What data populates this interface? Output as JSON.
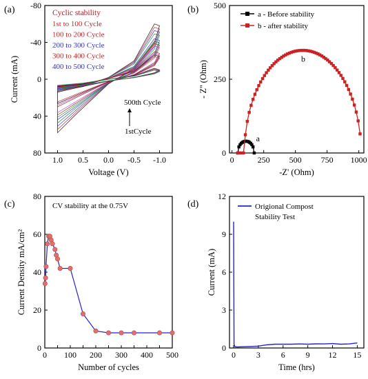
{
  "chart_data": [
    {
      "panel": "(a)",
      "type": "line",
      "xlabel": "Voltage (V)",
      "ylabel": "Current (mA)",
      "xlim": [
        1.25,
        -1.25
      ],
      "ylim": [
        80,
        -80
      ],
      "x_ticks": [
        1.0,
        0.5,
        0.0,
        -0.5,
        -1.0
      ],
      "x_tick_labels": [
        "1.0",
        "0.5",
        "0.0",
        "-0.5",
        "-1.0"
      ],
      "y_ticks": [
        -80,
        -40,
        0,
        40,
        80
      ],
      "y_tick_labels": [
        "-80",
        "-40",
        "0",
        "40",
        "80"
      ],
      "legend_title": "Cyclic stability",
      "legend": [
        {
          "text": "1st  to  100 Cycle",
          "color": "#cc2222"
        },
        {
          "text": "100 to 200 Cycle",
          "color": "#cc2222"
        },
        {
          "text": "200 to 300 Cycle",
          "color": "#3333cc"
        },
        {
          "text": "300 to 400 Cycle",
          "color": "#cc2222"
        },
        {
          "text": "400 to 500 Cycle",
          "color": "#3333cc"
        }
      ],
      "legend_position": "top-left",
      "annotations": [
        "500th Cycle",
        "1stCycle"
      ],
      "series": [
        {
          "upper": [
            [
              1.0,
              12
            ],
            [
              0.5,
              8
            ],
            [
              0.0,
              -2
            ],
            [
              -0.5,
              -20
            ],
            [
              -0.9,
              -60
            ],
            [
              -1.0,
              -58
            ]
          ],
          "lower": [
            [
              1.0,
              58
            ],
            [
              0.6,
              36
            ],
            [
              0.0,
              5
            ],
            [
              -0.5,
              -12
            ],
            [
              -0.9,
              -40
            ],
            [
              -1.0,
              -58
            ]
          ]
        },
        {
          "upper": [
            [
              1.0,
              10
            ],
            [
              0.5,
              7
            ],
            [
              0.0,
              -1
            ],
            [
              -0.5,
              -14
            ],
            [
              -0.9,
              -44
            ],
            [
              -1.0,
              -42
            ]
          ],
          "lower": [
            [
              1.0,
              44
            ],
            [
              0.6,
              28
            ],
            [
              0.0,
              4
            ],
            [
              -0.5,
              -8
            ],
            [
              -0.9,
              -28
            ],
            [
              -1.0,
              -42
            ]
          ]
        },
        {
          "upper": [
            [
              1.0,
              9
            ],
            [
              0.5,
              6
            ],
            [
              0.0,
              -1
            ],
            [
              -0.5,
              -10
            ],
            [
              -0.9,
              -30
            ],
            [
              -1.0,
              -28
            ]
          ],
          "lower": [
            [
              1.0,
              30
            ],
            [
              0.6,
              19
            ],
            [
              0.0,
              3
            ],
            [
              -0.5,
              -5
            ],
            [
              -0.9,
              -18
            ],
            [
              -1.0,
              -28
            ]
          ]
        },
        {
          "upper": [
            [
              1.0,
              8
            ],
            [
              0.5,
              5
            ],
            [
              0.0,
              0
            ],
            [
              -0.5,
              -4
            ],
            [
              -0.9,
              -12
            ],
            [
              -1.0,
              -10
            ]
          ],
          "lower": [
            [
              1.0,
              14
            ],
            [
              0.6,
              9
            ],
            [
              0.0,
              2
            ],
            [
              -0.5,
              -2
            ],
            [
              -0.9,
              -7
            ],
            [
              -1.0,
              -10
            ]
          ]
        }
      ]
    },
    {
      "panel": "(b)",
      "type": "scatter",
      "xlabel": "-Z' (Ohm)",
      "ylabel": "- Z'' (Ohm)",
      "xlim": [
        -20,
        1040
      ],
      "ylim": [
        0,
        500
      ],
      "x_ticks": [
        0,
        250,
        500,
        750,
        1000
      ],
      "y_ticks": [
        0,
        250,
        500
      ],
      "legend_position": "top-left",
      "series": [
        {
          "name": "a - Before stability",
          "label": "a",
          "color": "#000000",
          "center": 110,
          "radius": 65,
          "ymax": 40,
          "x_start": 45,
          "x_end": 175
        },
        {
          "name": "b - after stability",
          "label": "b",
          "color": "#cc2222",
          "center": 558,
          "radius": 460,
          "ymax": 348,
          "x_start": 45,
          "x_end": 1010
        }
      ]
    },
    {
      "panel": "(c)",
      "type": "line",
      "xlabel": "Number of cycles",
      "ylabel": "Current Density mA/cm²",
      "xlim": [
        0,
        500
      ],
      "ylim": [
        0,
        80
      ],
      "x_ticks": [
        0,
        50,
        100,
        150,
        200,
        250,
        300,
        350,
        400,
        450,
        500
      ],
      "x_tick_labels": [
        "0",
        "",
        "100",
        "",
        "200",
        "",
        "300",
        "",
        "400",
        "",
        "500"
      ],
      "y_ticks": [
        0,
        20,
        40,
        60,
        80
      ],
      "annotation": "CV stability at the 0.75V",
      "series": [
        {
          "color": "#2222cc",
          "marker_color": "#e07070",
          "x": [
            1,
            3,
            5,
            10,
            15,
            20,
            25,
            30,
            40,
            45,
            50,
            60,
            100,
            150,
            200,
            250,
            300,
            350,
            450,
            500
          ],
          "y": [
            34,
            37,
            43,
            55,
            59,
            59,
            57,
            55,
            52,
            49,
            47,
            42,
            42,
            18,
            9,
            8,
            8,
            8,
            8,
            8
          ]
        }
      ]
    },
    {
      "panel": "(d)",
      "type": "line",
      "xlabel": "Time (hrs)",
      "ylabel": "Current (mA)",
      "xlim": [
        -0.5,
        15.8
      ],
      "ylim": [
        0,
        12
      ],
      "x_ticks": [
        0,
        3,
        6,
        9,
        12,
        15
      ],
      "y_ticks": [
        0,
        3,
        6,
        9,
        12
      ],
      "legend_position": "top-left",
      "series": [
        {
          "name": "Origional Compost",
          "name_line2": "Stability Test",
          "color": "#2222cc",
          "x": [
            0,
            0.05,
            0.15,
            0.5,
            1,
            2,
            3,
            4,
            5,
            6,
            7,
            8,
            9,
            10,
            11,
            12,
            13,
            14,
            15
          ],
          "y": [
            10,
            0.3,
            0.1,
            0.08,
            0.1,
            0.12,
            0.15,
            0.25,
            0.3,
            0.3,
            0.3,
            0.32,
            0.3,
            0.33,
            0.32,
            0.35,
            0.3,
            0.32,
            0.4
          ]
        }
      ]
    }
  ]
}
